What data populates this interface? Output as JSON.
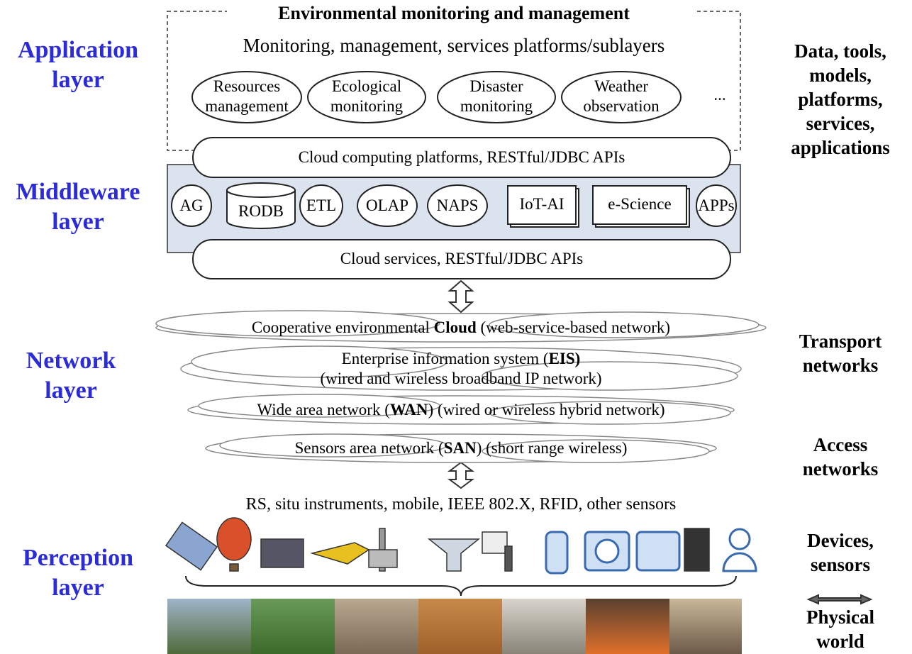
{
  "left_labels": [
    "Application layer",
    "Middleware layer",
    "Network layer",
    "Perception layer"
  ],
  "right_labels": [
    "Data, tools, models, platforms, services, applications",
    "Transport networks",
    "Access networks",
    "Devices, sensors",
    "Physical world"
  ],
  "application": {
    "title": "Environmental monitoring and management",
    "subtitle": "Monitoring, management, services platforms/sublayers",
    "items": [
      "Resources management",
      "Ecological monitoring",
      "Disaster monitoring",
      "Weather observation",
      "..."
    ]
  },
  "middleware": {
    "top_bar": "Cloud computing platforms, RESTful/JDBC APIs",
    "components": [
      "AG",
      "RODB",
      "ETL",
      "OLAP",
      "NAPS",
      "IoT-AI",
      "e-Science",
      "APPs"
    ],
    "bottom_bar": "Cloud services, RESTful/JDBC APIs"
  },
  "network": [
    {
      "before": "Cooperative environmental ",
      "bold": "Cloud",
      "after": " (web-service-based network)"
    },
    {
      "before": "Enterprise information system (",
      "bold": "EIS)",
      "line2": "(wired and wireless broadband IP network)"
    },
    {
      "before": "Wide area network (",
      "bold": "WAN",
      "after": ") (wired or wireless hybrid network)"
    },
    {
      "before": "Sensors area network (",
      "bold": "SAN",
      "after": ") (short range wireless)"
    }
  ],
  "perception": {
    "sensors": "RS, situ instruments, mobile, IEEE 802.X, RFID, other sensors"
  }
}
